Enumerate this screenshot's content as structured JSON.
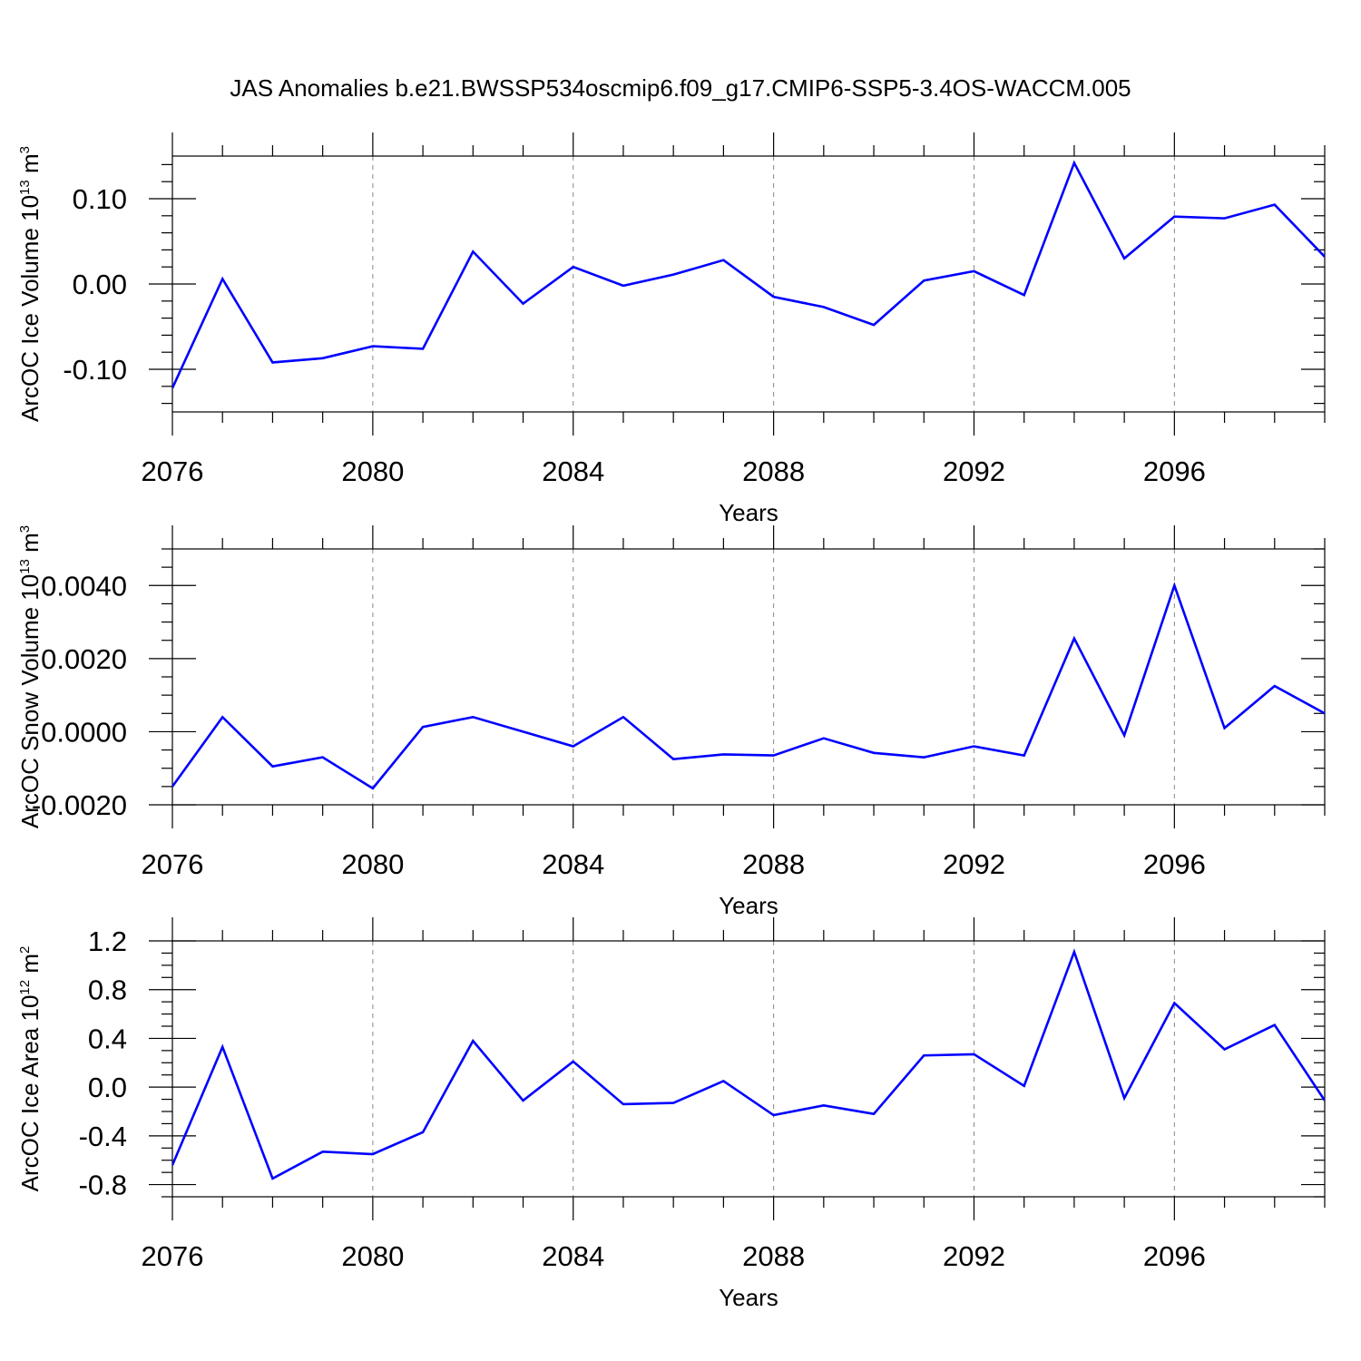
{
  "chart_data": [
    {
      "type": "line",
      "title": "JAS Anomalies b.e21.BWSSP534oscmip6.f09_g17.CMIP6-SSP5-3.4OS-WACCM.005",
      "xlabel": "Years",
      "ylabel": {
        "base": "ArcOC Ice Volume 10",
        "exp": "13",
        "unit": " m",
        "unit_exp": "3"
      },
      "xlim": [
        2076,
        2099
      ],
      "ylim": [
        -0.15,
        0.15
      ],
      "x_ticks": [
        2076,
        2080,
        2084,
        2088,
        2092,
        2096
      ],
      "x_tick_labels": [
        "2076",
        "2080",
        "2084",
        "2088",
        "2092",
        "2096"
      ],
      "y_ticks": [
        -0.1,
        0.0,
        0.1
      ],
      "y_tick_labels": [
        "-0.10",
        "0.00",
        "0.10"
      ],
      "y_minor_step": 0.02,
      "grid": "vertical-dashed",
      "line_color": "#0000ff",
      "series": [
        {
          "name": "Ice Volume",
          "x": [
            2076,
            2077,
            2078,
            2079,
            2080,
            2081,
            2082,
            2083,
            2084,
            2085,
            2086,
            2087,
            2088,
            2089,
            2090,
            2091,
            2092,
            2093,
            2094,
            2095,
            2096,
            2097,
            2098,
            2099
          ],
          "values": [
            -0.122,
            0.006,
            -0.092,
            -0.087,
            -0.073,
            -0.076,
            0.038,
            -0.023,
            0.02,
            -0.002,
            0.011,
            0.028,
            -0.015,
            -0.027,
            -0.048,
            0.004,
            0.015,
            -0.013,
            0.142,
            0.03,
            0.079,
            0.077,
            0.093,
            0.032
          ]
        }
      ]
    },
    {
      "type": "line",
      "xlabel": "Years",
      "ylabel": {
        "base": "ArcOC Snow Volume 10",
        "exp": "13",
        "unit": " m",
        "unit_exp": "3"
      },
      "xlim": [
        2076,
        2099
      ],
      "ylim": [
        -0.002,
        0.005
      ],
      "x_ticks": [
        2076,
        2080,
        2084,
        2088,
        2092,
        2096
      ],
      "x_tick_labels": [
        "2076",
        "2080",
        "2084",
        "2088",
        "2092",
        "2096"
      ],
      "y_ticks": [
        -0.002,
        0.0,
        0.002,
        0.004
      ],
      "y_tick_labels": [
        "-0.0020",
        "0.0000",
        "0.0020",
        "0.0040"
      ],
      "y_minor_step": 0.0005,
      "grid": "vertical-dashed",
      "line_color": "#0000ff",
      "series": [
        {
          "name": "Snow Volume",
          "x": [
            2076,
            2077,
            2078,
            2079,
            2080,
            2081,
            2082,
            2083,
            2084,
            2085,
            2086,
            2087,
            2088,
            2089,
            2090,
            2091,
            2092,
            2093,
            2094,
            2095,
            2096,
            2097,
            2098,
            2099
          ],
          "values": [
            -0.0015,
            0.0004,
            -0.00095,
            -0.0007,
            -0.00155,
            0.00013,
            0.0004,
            0.0,
            -0.0004,
            0.0004,
            -0.00075,
            -0.00062,
            -0.00065,
            -0.00018,
            -0.00058,
            -0.0007,
            -0.0004,
            -0.00065,
            0.00255,
            -0.0001,
            0.004,
            0.0001,
            0.00125,
            0.0005
          ]
        }
      ]
    },
    {
      "type": "line",
      "xlabel": "Years",
      "ylabel": {
        "base": "ArcOC Ice Area 10",
        "exp": "12",
        "unit": " m",
        "unit_exp": "2"
      },
      "xlim": [
        2076,
        2099
      ],
      "ylim": [
        -0.9,
        1.2
      ],
      "x_ticks": [
        2076,
        2080,
        2084,
        2088,
        2092,
        2096
      ],
      "x_tick_labels": [
        "2076",
        "2080",
        "2084",
        "2088",
        "2092",
        "2096"
      ],
      "y_ticks": [
        -0.8,
        -0.4,
        0.0,
        0.4,
        0.8,
        1.2
      ],
      "y_tick_labels": [
        "-0.8",
        "-0.4",
        "0.0",
        "0.4",
        "0.8",
        "1.2"
      ],
      "y_minor_step": 0.1,
      "grid": "vertical-dashed",
      "line_color": "#0000ff",
      "series": [
        {
          "name": "Ice Area",
          "x": [
            2076,
            2077,
            2078,
            2079,
            2080,
            2081,
            2082,
            2083,
            2084,
            2085,
            2086,
            2087,
            2088,
            2089,
            2090,
            2091,
            2092,
            2093,
            2094,
            2095,
            2096,
            2097,
            2098,
            2099
          ],
          "values": [
            -0.64,
            0.33,
            -0.75,
            -0.53,
            -0.55,
            -0.37,
            0.38,
            -0.11,
            0.21,
            -0.14,
            -0.13,
            0.05,
            -0.23,
            -0.15,
            -0.22,
            0.26,
            0.27,
            0.01,
            1.11,
            -0.09,
            0.69,
            0.31,
            0.51,
            -0.11
          ]
        }
      ]
    }
  ]
}
